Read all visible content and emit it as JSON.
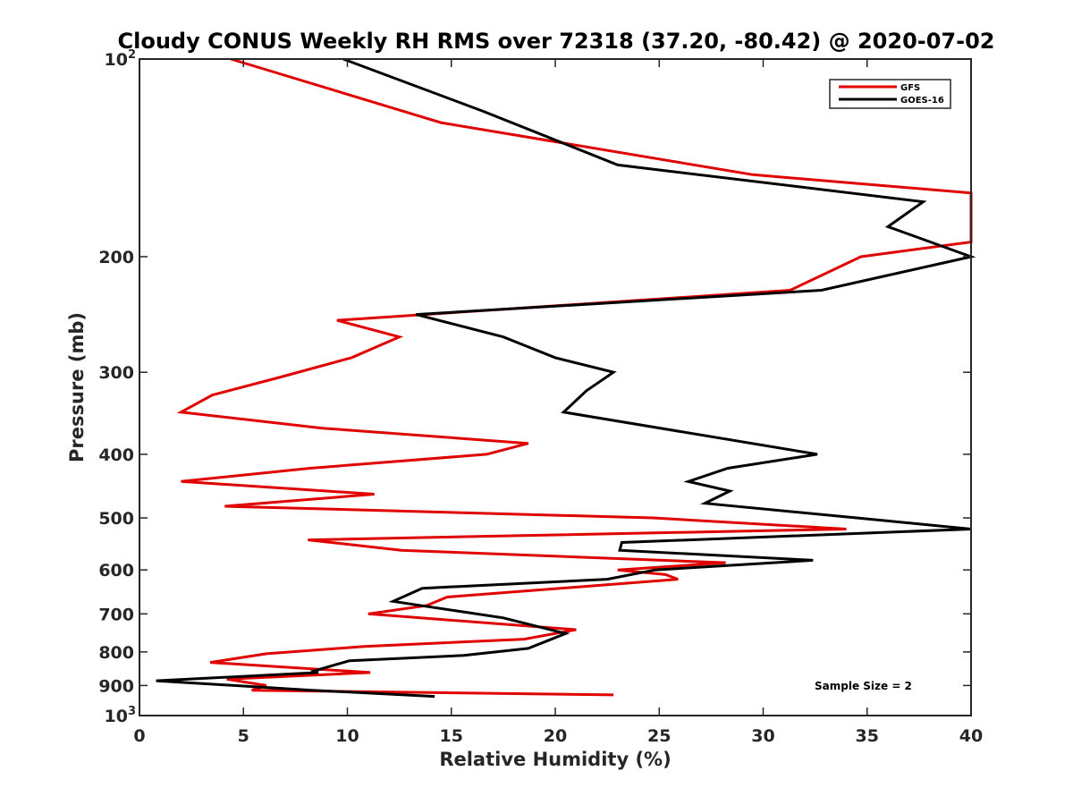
{
  "chart_data": {
    "type": "line",
    "title": "Cloudy CONUS Weekly RH RMS over 72318 (37.20, -80.42) @ 2020-07-02",
    "xlabel": "Relative Humidity (%)",
    "ylabel": "Pressure (mb)",
    "xlim": [
      0,
      40
    ],
    "ylim": [
      100,
      1000
    ],
    "yscale": "log",
    "y_reversed": true,
    "xticks": [
      "0",
      "5",
      "10",
      "15",
      "20",
      "25",
      "30",
      "35",
      "40"
    ],
    "yticks": [
      {
        "value": 100,
        "label": "10",
        "sup": "2"
      },
      {
        "value": 200,
        "label": "200",
        "sup": ""
      },
      {
        "value": 300,
        "label": "300",
        "sup": ""
      },
      {
        "value": 400,
        "label": "400",
        "sup": ""
      },
      {
        "value": 500,
        "label": "500",
        "sup": ""
      },
      {
        "value": 600,
        "label": "600",
        "sup": ""
      },
      {
        "value": 700,
        "label": "700",
        "sup": ""
      },
      {
        "value": 800,
        "label": "800",
        "sup": ""
      },
      {
        "value": 900,
        "label": "900",
        "sup": ""
      },
      {
        "value": 1000,
        "label": "10",
        "sup": "3"
      }
    ],
    "legend_position": "top-right",
    "annotation": "Sample Size = 2",
    "series": [
      {
        "name": "GFS",
        "color": "#e00000",
        "points": [
          [
            4.4,
            100
          ],
          [
            14.5,
            125
          ],
          [
            29.5,
            150
          ],
          [
            40.0,
            160
          ],
          [
            40.0,
            190
          ],
          [
            34.7,
            200
          ],
          [
            31.3,
            225
          ],
          [
            9.5,
            250
          ],
          [
            12.5,
            265
          ],
          [
            10.2,
            285
          ],
          [
            6.8,
            305
          ],
          [
            3.5,
            325
          ],
          [
            2.0,
            345
          ],
          [
            8.8,
            365
          ],
          [
            18.7,
            385
          ],
          [
            16.7,
            400
          ],
          [
            8.2,
            420
          ],
          [
            2.0,
            440
          ],
          [
            11.3,
            460
          ],
          [
            4.1,
            480
          ],
          [
            24.7,
            500
          ],
          [
            34.0,
            520
          ],
          [
            8.1,
            540
          ],
          [
            12.6,
            560
          ],
          [
            28.2,
            585
          ],
          [
            23.0,
            600
          ],
          [
            25.3,
            610
          ],
          [
            25.9,
            620
          ],
          [
            14.8,
            660
          ],
          [
            13.8,
            680
          ],
          [
            11.0,
            700
          ],
          [
            21.0,
            740
          ],
          [
            18.5,
            765
          ],
          [
            10.8,
            785
          ],
          [
            6.1,
            805
          ],
          [
            3.4,
            830
          ],
          [
            11.1,
            860
          ],
          [
            4.2,
            880
          ],
          [
            6.1,
            900
          ],
          [
            5.4,
            915
          ],
          [
            22.8,
            930
          ]
        ]
      },
      {
        "name": "GOES-16",
        "color": "#000000",
        "points": [
          [
            9.8,
            100
          ],
          [
            16.5,
            120
          ],
          [
            23.0,
            145
          ],
          [
            37.7,
            165
          ],
          [
            36.0,
            180
          ],
          [
            40.0,
            200
          ],
          [
            32.8,
            225
          ],
          [
            13.3,
            245
          ],
          [
            17.5,
            265
          ],
          [
            20.0,
            285
          ],
          [
            22.8,
            300
          ],
          [
            21.5,
            320
          ],
          [
            20.4,
            345
          ],
          [
            32.6,
            400
          ],
          [
            28.3,
            420
          ],
          [
            26.4,
            440
          ],
          [
            28.4,
            455
          ],
          [
            27.2,
            475
          ],
          [
            34.5,
            500
          ],
          [
            40.0,
            520
          ],
          [
            23.2,
            545
          ],
          [
            23.1,
            560
          ],
          [
            32.4,
            580
          ],
          [
            24.8,
            600
          ],
          [
            22.5,
            620
          ],
          [
            13.6,
            640
          ],
          [
            12.2,
            670
          ],
          [
            17.5,
            710
          ],
          [
            20.5,
            750
          ],
          [
            18.7,
            790
          ],
          [
            15.6,
            810
          ],
          [
            10.1,
            825
          ],
          [
            8.4,
            855
          ],
          [
            8.6,
            860
          ],
          [
            0.8,
            885
          ],
          [
            8.3,
            915
          ],
          [
            14.2,
            935
          ]
        ]
      }
    ]
  }
}
